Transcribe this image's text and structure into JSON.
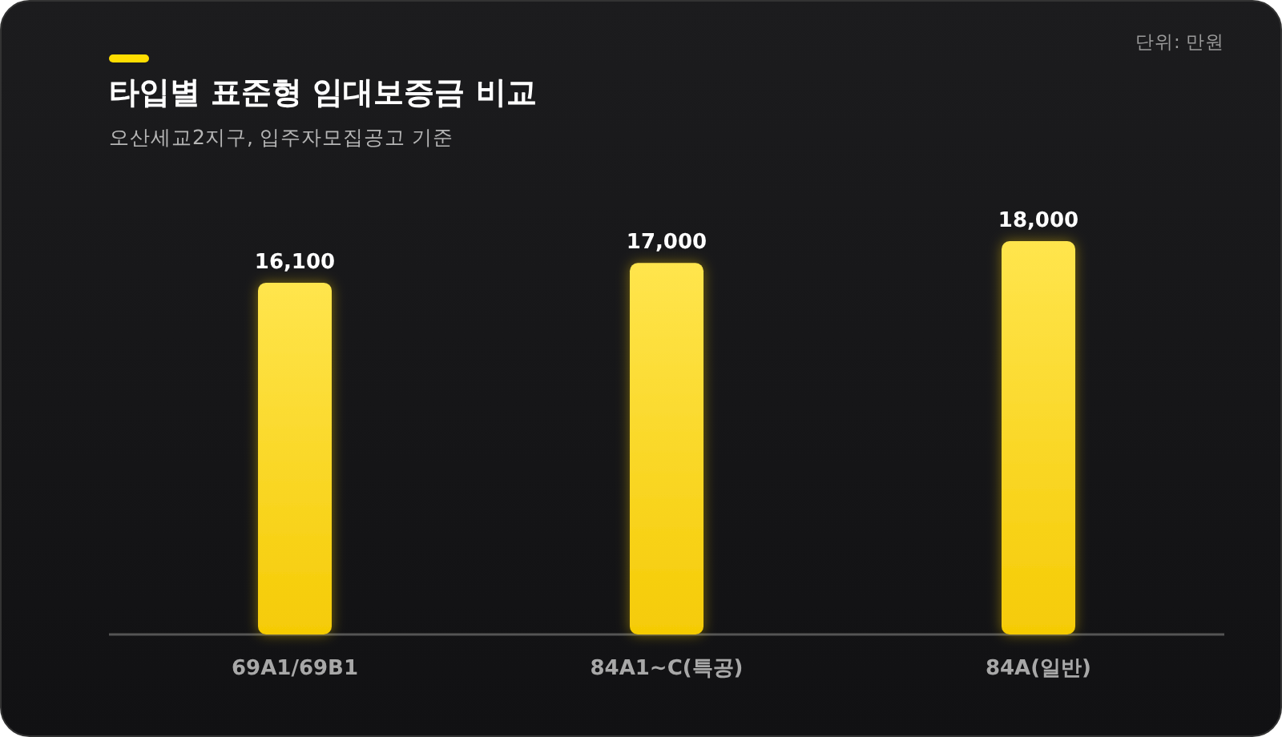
{
  "chart_data": {
    "type": "bar",
    "title": "타입별 표준형 임대보증금 비교",
    "subtitle": "오산세교2지구, 입주자모집공고 기준",
    "annotations": [
      "단위: 만원"
    ],
    "categories": [
      "69A1/69B1",
      "84A1~C(특공)",
      "84A(일반)"
    ],
    "values": [
      16100,
      17000,
      18000
    ],
    "value_labels": [
      "16,100",
      "17,000",
      "18,000"
    ],
    "color": "#f5cb05"
  }
}
